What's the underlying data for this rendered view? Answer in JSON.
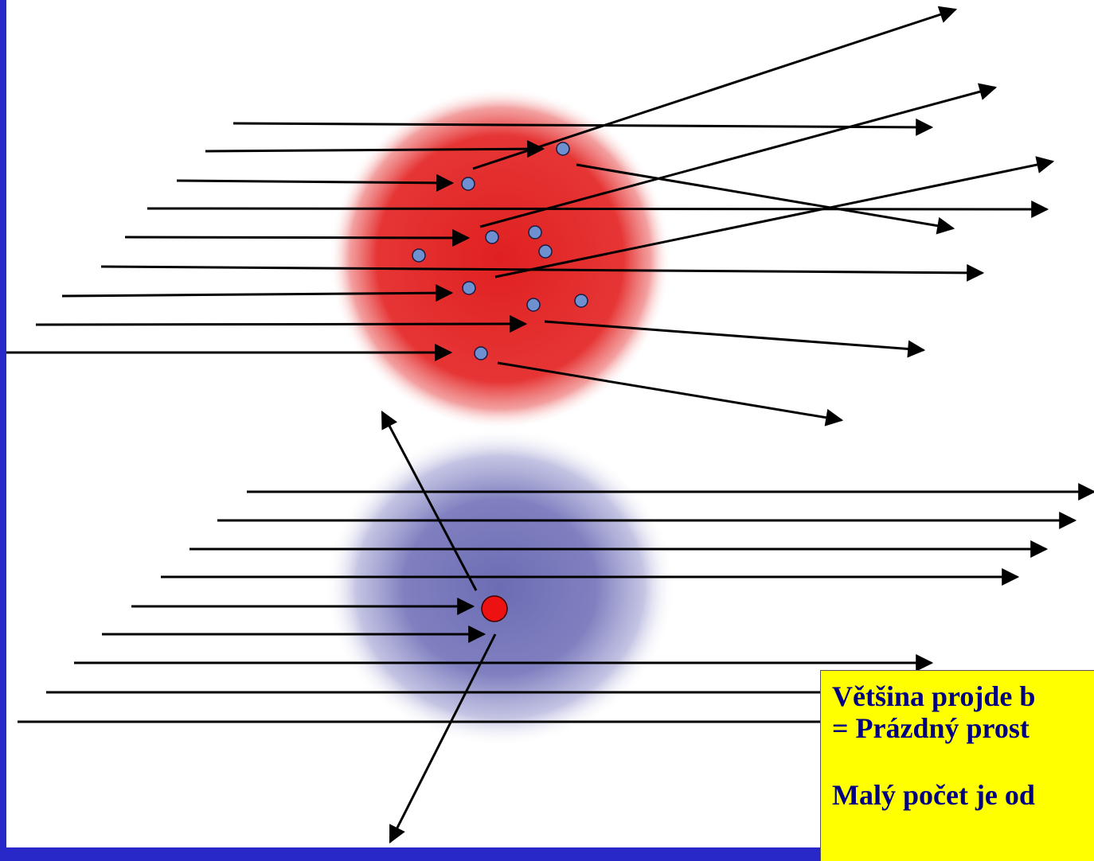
{
  "slide": {
    "title": "",
    "background": "#2828c8"
  },
  "diagram": {
    "upper_atom": {
      "cloud_color": "#e83030",
      "particle_color": "#6e8fd0"
    },
    "lower_atom": {
      "cloud_color": "#7777bb",
      "nucleus_color": "#ee1111"
    },
    "arrow_color": "#000000"
  },
  "note": {
    "background": "#ffff00",
    "line1": "Většina projde b",
    "line2": "= Prázdný prost",
    "line3": "Malý počet je od"
  }
}
